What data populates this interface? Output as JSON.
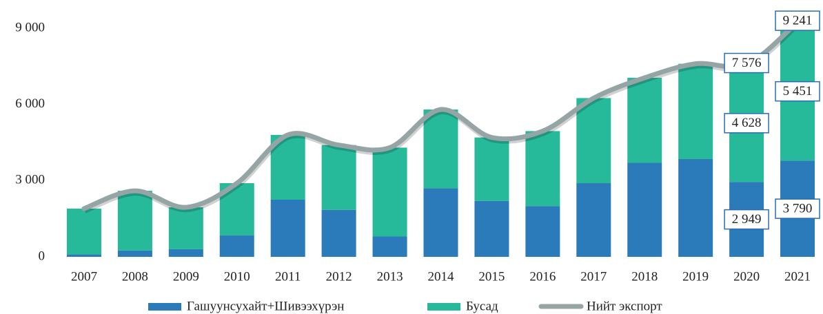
{
  "chart_data": {
    "type": "stacked_bar_line",
    "categories": [
      "2007",
      "2008",
      "2009",
      "2010",
      "2011",
      "2012",
      "2013",
      "2014",
      "2015",
      "2016",
      "2017",
      "2018",
      "2019",
      "2020",
      "2021"
    ],
    "series": [
      {
        "name": "Гашуунсухайт+Шивээхүрэн",
        "color": "#2b7bba",
        "kind": "bar",
        "values": [
          100,
          250,
          300,
          850,
          2250,
          1850,
          800,
          2700,
          2200,
          2000,
          2900,
          3700,
          3850,
          2949,
          3790
        ],
        "value_labels": [
          null,
          null,
          null,
          null,
          null,
          null,
          null,
          null,
          null,
          null,
          null,
          null,
          null,
          "2 949",
          "3 790"
        ]
      },
      {
        "name": "Бусад",
        "color": "#26b99a",
        "kind": "bar",
        "values": [
          1800,
          2350,
          1650,
          2050,
          2550,
          2550,
          3500,
          3100,
          2500,
          2950,
          3350,
          3350,
          3750,
          4628,
          5451
        ],
        "value_labels": [
          null,
          null,
          null,
          null,
          null,
          null,
          null,
          null,
          null,
          null,
          null,
          null,
          null,
          "4 628",
          "5 451"
        ]
      },
      {
        "name": "Нийт экспорт",
        "color": "#95a5a6",
        "kind": "line",
        "values": [
          1900,
          2600,
          1950,
          2900,
          4800,
          4400,
          4300,
          5800,
          4700,
          4950,
          6250,
          7050,
          7600,
          7576,
          9241
        ],
        "value_labels": [
          null,
          null,
          null,
          null,
          null,
          null,
          null,
          null,
          null,
          null,
          null,
          null,
          null,
          "7 576",
          "9 241"
        ]
      }
    ],
    "ylim": [
      0,
      9000
    ],
    "yticks": [
      0,
      {
        "value": 3000,
        "label": "3 000"
      },
      {
        "value": 6000,
        "label": "6 000"
      },
      {
        "value": 9000,
        "label": "9 000"
      }
    ],
    "grid": false,
    "legend": "bottom"
  }
}
